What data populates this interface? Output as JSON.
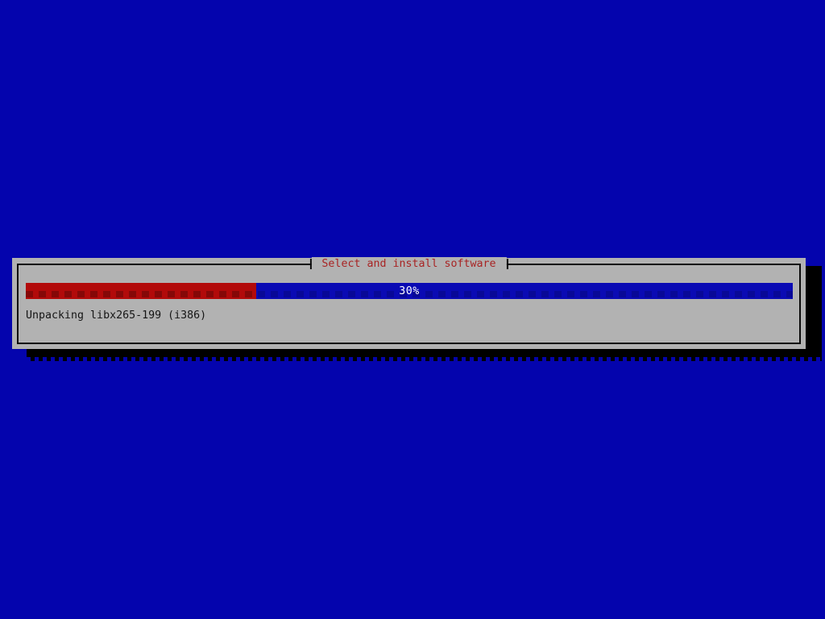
{
  "screen": {
    "background_color": "#0404ad"
  },
  "dialog": {
    "title": "Select and install software",
    "background_color": "#b2b2b2",
    "title_color": "#a82424",
    "border_color": "#0a0a0a",
    "shadow_color": "#000000"
  },
  "progress_bar": {
    "percent": 30,
    "label": "30%",
    "label_color": "#ffffff",
    "fill_color": "#b20a0a",
    "track_color": "#0a0ab4"
  },
  "status": {
    "message": "Unpacking libx265-199 (i386)"
  }
}
